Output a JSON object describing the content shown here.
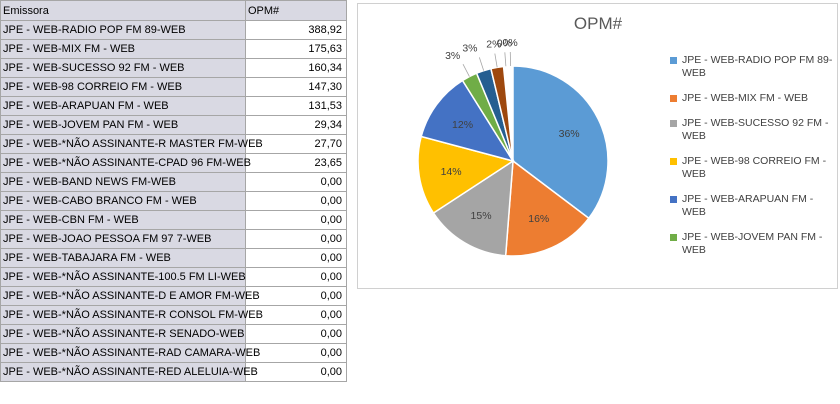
{
  "table": {
    "header": {
      "name": "Emissora",
      "value": "OPM#"
    },
    "rows": [
      {
        "name": "JPE - WEB-RADIO POP FM 89-WEB",
        "value": "388,92"
      },
      {
        "name": "JPE - WEB-MIX FM - WEB",
        "value": "175,63"
      },
      {
        "name": "JPE - WEB-SUCESSO 92 FM - WEB",
        "value": "160,34"
      },
      {
        "name": "JPE - WEB-98 CORREIO FM - WEB",
        "value": "147,30"
      },
      {
        "name": "JPE - WEB-ARAPUAN FM - WEB",
        "value": "131,53"
      },
      {
        "name": "JPE - WEB-JOVEM PAN FM - WEB",
        "value": "29,34"
      },
      {
        "name": "JPE - WEB-*NÃO ASSINANTE-R MASTER FM-WEB",
        "value": "27,70"
      },
      {
        "name": "JPE - WEB-*NÃO ASSINANTE-CPAD 96 FM-WEB",
        "value": "23,65"
      },
      {
        "name": "JPE - WEB-BAND NEWS FM-WEB",
        "value": "0,00"
      },
      {
        "name": "JPE - WEB-CABO BRANCO FM - WEB",
        "value": "0,00"
      },
      {
        "name": "JPE - WEB-CBN FM - WEB",
        "value": "0,00"
      },
      {
        "name": "JPE - WEB-JOAO PESSOA FM 97 7-WEB",
        "value": "0,00"
      },
      {
        "name": "JPE - WEB-TABAJARA FM - WEB",
        "value": "0,00"
      },
      {
        "name": "JPE - WEB-*NÃO ASSINANTE-100.5 FM LI-WEB",
        "value": "0,00"
      },
      {
        "name": "JPE - WEB-*NÃO ASSINANTE-D E AMOR FM-WEB",
        "value": "0,00"
      },
      {
        "name": "JPE - WEB-*NÃO ASSINANTE-R CONSOL FM-WEB",
        "value": "0,00"
      },
      {
        "name": "JPE - WEB-*NÃO ASSINANTE-R SENADO-WEB",
        "value": "0,00"
      },
      {
        "name": "JPE - WEB-*NÃO ASSINANTE-RAD CAMARA-WEB",
        "value": "0,00"
      },
      {
        "name": "JPE - WEB-*NÃO ASSINANTE-RED ALELUIA-WEB",
        "value": "0,00"
      }
    ]
  },
  "chart_data": {
    "type": "pie",
    "title": "OPM#",
    "legend_position": "right",
    "slices": [
      {
        "name": "JPE - WEB-RADIO POP FM 89-WEB",
        "value": 388.92,
        "label": "36%",
        "color": "#5b9bd5",
        "in_legend": true
      },
      {
        "name": "JPE - WEB-MIX FM - WEB",
        "value": 175.63,
        "label": "16%",
        "color": "#ed7d31",
        "in_legend": true
      },
      {
        "name": "JPE - WEB-SUCESSO 92 FM - WEB",
        "value": 160.34,
        "label": "15%",
        "color": "#a5a5a5",
        "in_legend": true
      },
      {
        "name": "JPE - WEB-98 CORREIO FM - WEB",
        "value": 147.3,
        "label": "14%",
        "color": "#ffc000",
        "in_legend": true
      },
      {
        "name": "JPE - WEB-ARAPUAN FM - WEB",
        "value": 131.53,
        "label": "12%",
        "color": "#4472c4",
        "in_legend": true
      },
      {
        "name": "JPE - WEB-JOVEM PAN FM - WEB",
        "value": 29.34,
        "label": "3%",
        "color": "#70ad47",
        "in_legend": true
      },
      {
        "name": "JPE - WEB-*NÃO ASSINANTE-R MASTER FM-WEB",
        "value": 27.7,
        "label": "3%",
        "color": "#255e91",
        "in_legend": false
      },
      {
        "name": "JPE - WEB-*NÃO ASSINANTE-CPAD 96 FM-WEB",
        "value": 23.65,
        "label": "2%",
        "color": "#9e480e",
        "in_legend": false
      },
      {
        "name": "JPE - WEB-BAND NEWS FM-WEB",
        "value": 0,
        "label": "0%",
        "color": "#636363",
        "in_legend": false
      },
      {
        "name": "JPE - WEB-CABO BRANCO FM - WEB",
        "value": 0,
        "label": "0%",
        "color": "#997300",
        "in_legend": false
      }
    ]
  }
}
